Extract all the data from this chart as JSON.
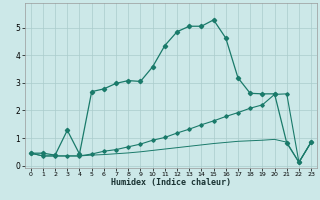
{
  "xlabel": "Humidex (Indice chaleur)",
  "xlim": [
    -0.5,
    23.5
  ],
  "ylim": [
    -0.1,
    5.9
  ],
  "yticks": [
    0,
    1,
    2,
    3,
    4,
    5
  ],
  "xticks": [
    0,
    1,
    2,
    3,
    4,
    5,
    6,
    7,
    8,
    9,
    10,
    11,
    12,
    13,
    14,
    15,
    16,
    17,
    18,
    19,
    20,
    21,
    22,
    23
  ],
  "bg_color": "#cce8e8",
  "grid_color": "#aacccc",
  "line_color": "#1a7a6a",
  "line1_x": [
    0,
    1,
    2,
    3,
    4,
    5,
    6,
    7,
    8,
    9,
    10,
    11,
    12,
    13,
    14,
    15,
    16,
    17,
    18,
    19,
    20,
    21,
    22,
    23
  ],
  "line1_y": [
    0.45,
    0.45,
    0.38,
    1.28,
    0.42,
    2.68,
    2.78,
    2.98,
    3.08,
    3.05,
    3.58,
    4.35,
    4.85,
    5.05,
    5.05,
    5.28,
    4.62,
    3.18,
    2.62,
    2.6,
    2.6,
    0.82,
    0.12,
    0.85
  ],
  "line2_x": [
    0,
    1,
    2,
    3,
    4,
    5,
    6,
    7,
    8,
    9,
    10,
    11,
    12,
    13,
    14,
    15,
    16,
    17,
    18,
    19,
    20,
    21,
    22,
    23
  ],
  "line2_y": [
    0.45,
    0.35,
    0.35,
    0.35,
    0.35,
    0.42,
    0.52,
    0.58,
    0.68,
    0.78,
    0.92,
    1.02,
    1.18,
    1.32,
    1.48,
    1.62,
    1.78,
    1.92,
    2.08,
    2.2,
    2.58,
    2.6,
    0.12,
    0.85
  ],
  "line3_x": [
    0,
    1,
    2,
    3,
    4,
    5,
    6,
    7,
    8,
    9,
    10,
    11,
    12,
    13,
    14,
    15,
    16,
    17,
    18,
    19,
    20,
    21,
    22,
    23
  ],
  "line3_y": [
    0.45,
    0.35,
    0.35,
    0.35,
    0.35,
    0.38,
    0.4,
    0.43,
    0.46,
    0.5,
    0.55,
    0.6,
    0.65,
    0.7,
    0.75,
    0.8,
    0.84,
    0.88,
    0.9,
    0.92,
    0.95,
    0.85,
    0.12,
    0.85
  ]
}
